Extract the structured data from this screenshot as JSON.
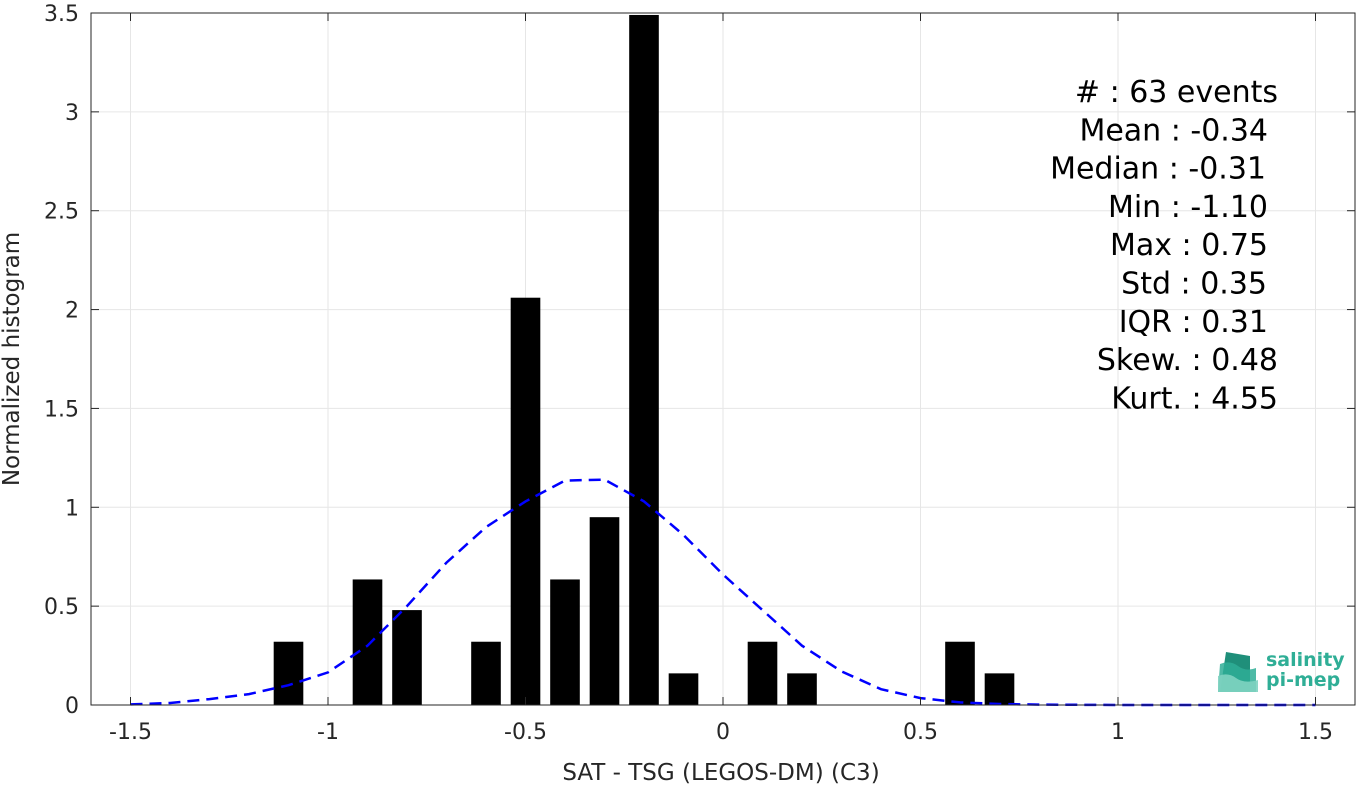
{
  "chart_data": {
    "type": "bar",
    "title": "",
    "xlabel": "SAT - TSG (LEGOS-DM) (C3)",
    "ylabel": "Normalized histogram",
    "xlim": [
      -1.6,
      1.6
    ],
    "ylim": [
      0,
      3.5
    ],
    "grid": true,
    "x_ticks": [
      -1.5,
      -1,
      -0.5,
      0,
      0.5,
      1,
      1.5
    ],
    "x_tick_labels": [
      "-1.5",
      "-1",
      "-0.5",
      "0",
      "0.5",
      "1",
      "1.5"
    ],
    "y_ticks": [
      0,
      0.5,
      1,
      1.5,
      2,
      2.5,
      3,
      3.5
    ],
    "y_tick_labels": [
      "0",
      "0.5",
      "1",
      "1.5",
      "2",
      "2.5",
      "3",
      "3.5"
    ],
    "bin_width": 0.1,
    "bars": {
      "x": [
        -1.1,
        -0.9,
        -0.8,
        -0.6,
        -0.5,
        -0.4,
        -0.3,
        -0.2,
        -0.1,
        0.1,
        0.2,
        0.6,
        0.7
      ],
      "values": [
        0.32,
        0.635,
        0.48,
        0.32,
        2.06,
        0.635,
        0.95,
        3.49,
        0.16,
        0.32,
        0.16,
        0.32,
        0.16
      ],
      "color": "#000000"
    },
    "fit_curve": {
      "name": "gaussian fit",
      "style": "dashed",
      "color": "#0000ff",
      "x": [
        -1.5,
        -1.4,
        -1.3,
        -1.2,
        -1.1,
        -1.0,
        -0.9,
        -0.8,
        -0.7,
        -0.6,
        -0.5,
        -0.4,
        -0.3,
        -0.2,
        -0.1,
        0.0,
        0.1,
        0.2,
        0.3,
        0.4,
        0.5,
        0.6,
        0.7,
        0.8,
        0.9,
        1.0,
        1.1,
        1.2,
        1.3,
        1.4,
        1.5
      ],
      "y": [
        0.003,
        0.01,
        0.03,
        0.055,
        0.1,
        0.165,
        0.3,
        0.5,
        0.72,
        0.9,
        1.03,
        1.135,
        1.14,
        1.03,
        0.86,
        0.66,
        0.48,
        0.3,
        0.17,
        0.08,
        0.035,
        0.013,
        0.005,
        0.002,
        0.001,
        0.0,
        0.0,
        0.0,
        0.0,
        0.0,
        0.0
      ]
    },
    "annotations": [
      {
        "text": "#  : 63 events"
      },
      {
        "text": "Mean : -0.34"
      },
      {
        "text": "Median : -0.31"
      },
      {
        "text": "Min : -1.10"
      },
      {
        "text": "Max : 0.75"
      },
      {
        "text": "Std : 0.35"
      },
      {
        "text": "IQR : 0.31"
      },
      {
        "text": "Skew. : 0.48"
      },
      {
        "text": "Kurt. : 4.55"
      }
    ]
  },
  "logo": {
    "line1": "salinity",
    "line2": "pi-mep",
    "color": "#2fae96"
  }
}
